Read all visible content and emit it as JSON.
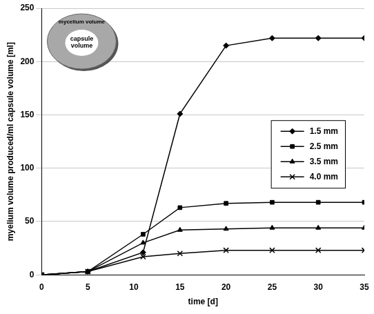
{
  "chart_data": {
    "type": "line",
    "x_label": "time [d]",
    "y_label": "myelium volume produced/ml capsule volume [ml]",
    "annotations": [
      "mycelium volume",
      "capsule volume"
    ],
    "x": [
      0,
      5,
      11,
      15,
      20,
      25,
      30,
      35
    ],
    "xlim": [
      0,
      35
    ],
    "xticks": [
      0,
      5,
      10,
      15,
      20,
      25,
      30,
      35
    ],
    "ylim": [
      0,
      250
    ],
    "yticks": [
      0,
      50,
      100,
      150,
      200,
      250
    ],
    "grid": true,
    "legend": "right",
    "series": [
      {
        "name": "1.5 mm",
        "color": "#000000",
        "marker": "diamond",
        "values": [
          0,
          3,
          21,
          151,
          215,
          222,
          222,
          222
        ]
      },
      {
        "name": "2.5 mm",
        "color": "#000000",
        "marker": "square",
        "values": [
          0,
          3,
          38,
          63,
          67,
          68,
          68,
          68
        ]
      },
      {
        "name": "3.5 mm",
        "color": "#000000",
        "marker": "triangle",
        "values": [
          0,
          3,
          30,
          42,
          43,
          44,
          44,
          44
        ]
      },
      {
        "name": "4.0 mm",
        "color": "#000000",
        "marker": "x",
        "values": [
          0,
          3,
          17,
          20,
          23,
          23,
          23,
          23
        ]
      }
    ]
  }
}
